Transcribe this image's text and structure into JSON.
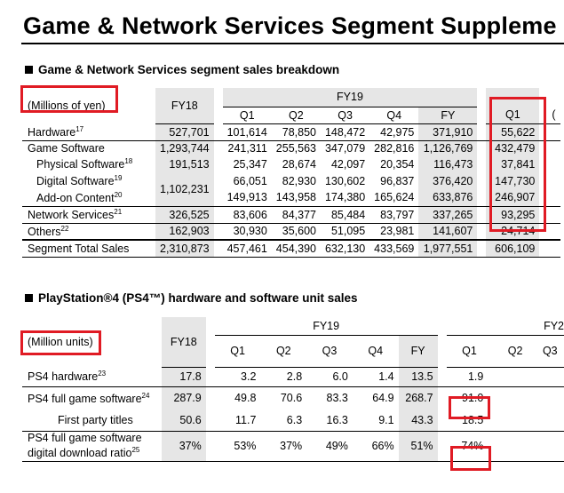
{
  "title": "Game & Network Services Segment Suppleme",
  "section1": {
    "heading": "Game & Network Services segment sales breakdown",
    "unit_label": "(Millions of yen)",
    "fy18": "FY18",
    "fy19": "FY19",
    "quarters": [
      "Q1",
      "Q2",
      "Q3",
      "Q4"
    ],
    "fy": "FY",
    "next_q1": "Q1",
    "next_cut": "(",
    "rows": [
      {
        "label": "Hardware",
        "sup": "17",
        "fy18": "527,701",
        "q": [
          "101,614",
          "78,850",
          "148,472",
          "42,975"
        ],
        "fy": "371,910",
        "next": "55,622"
      },
      {
        "label": "Game Software",
        "sup": "",
        "fy18": "1,293,744",
        "q": [
          "241,311",
          "255,563",
          "347,079",
          "282,816"
        ],
        "fy": "1,126,769",
        "next": "432,479"
      },
      {
        "label": "Physical Software",
        "sup": "18",
        "fy18": "191,513",
        "q": [
          "25,347",
          "28,674",
          "42,097",
          "20,354"
        ],
        "fy": "116,473",
        "next": "37,841"
      },
      {
        "label": "Digital Software",
        "sup": "19",
        "fy18": "1,102,231",
        "q": [
          "66,051",
          "82,930",
          "130,602",
          "96,837"
        ],
        "fy": "376,420",
        "next": "147,730"
      },
      {
        "label": "Add-on Content",
        "sup": "20",
        "fy18": "",
        "q": [
          "149,913",
          "143,958",
          "174,380",
          "165,624"
        ],
        "fy": "633,876",
        "next": "246,907"
      },
      {
        "label": "Network Services",
        "sup": "21",
        "fy18": "326,525",
        "q": [
          "83,606",
          "84,377",
          "85,484",
          "83,797"
        ],
        "fy": "337,265",
        "next": "93,295"
      },
      {
        "label": "Others",
        "sup": "22",
        "fy18": "162,903",
        "q": [
          "30,930",
          "35,600",
          "51,095",
          "23,981"
        ],
        "fy": "141,607",
        "next": "24,714"
      },
      {
        "label": "Segment Total Sales",
        "sup": "",
        "fy18": "2,310,873",
        "q": [
          "457,461",
          "454,390",
          "632,130",
          "433,569"
        ],
        "fy": "1,977,551",
        "next": "606,109"
      }
    ]
  },
  "section2": {
    "heading": "PlayStation®4 (PS4™) hardware and software unit sales",
    "unit_label": "(Million units)",
    "fy18": "FY18",
    "fy19": "FY19",
    "quarters": [
      "Q1",
      "Q2",
      "Q3",
      "Q4"
    ],
    "fy": "FY",
    "next_quarters": [
      "Q1",
      "Q2",
      "Q3"
    ],
    "next_fy": "FY2",
    "rows": [
      {
        "label": "PS4 hardware",
        "sup": "23",
        "fy18": "17.8",
        "q": [
          "3.2",
          "2.8",
          "6.0",
          "1.4"
        ],
        "fy": "13.5",
        "next": "1.9"
      },
      {
        "label": "PS4 full game software",
        "sup": "24",
        "fy18": "287.9",
        "q": [
          "49.8",
          "70.6",
          "83.3",
          "64.9"
        ],
        "fy": "268.7",
        "next": "91.0"
      },
      {
        "label": "First party titles",
        "sup": "",
        "fy18": "50.6",
        "q": [
          "11.7",
          "6.3",
          "16.3",
          "9.1"
        ],
        "fy": "43.3",
        "next": "18.5"
      },
      {
        "label": "PS4 full game software",
        "label2": "digital download ratio",
        "sup": "25",
        "fy18": "37%",
        "q": [
          "53%",
          "37%",
          "49%",
          "66%"
        ],
        "fy": "51%",
        "next": "74%"
      }
    ]
  },
  "colors": {
    "highlight": "#e01b24",
    "shade": "#e6e6e6"
  }
}
